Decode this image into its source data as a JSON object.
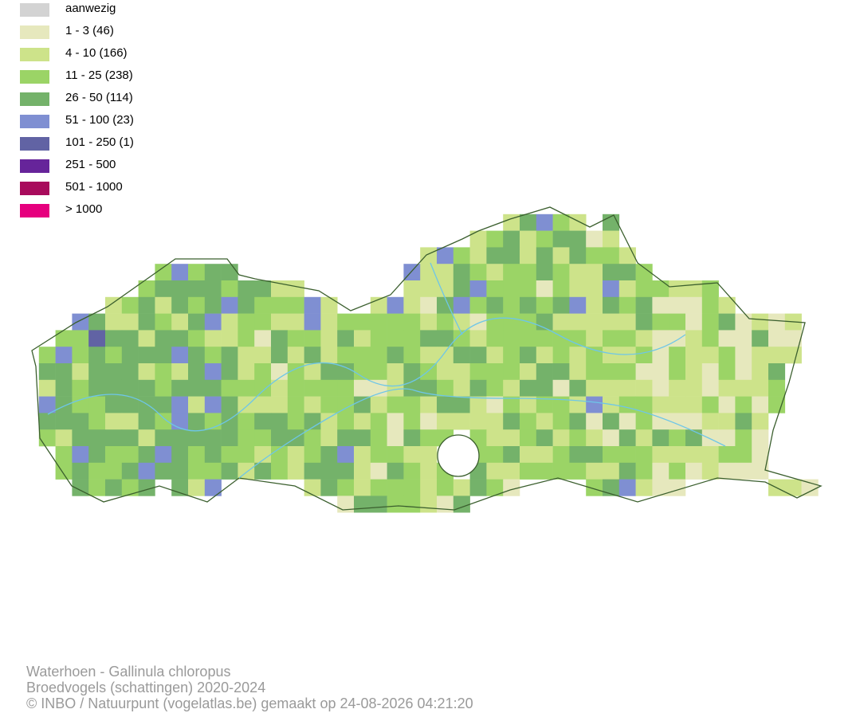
{
  "legend": [
    {
      "label": "aanwezig",
      "color": "#d3d3d3"
    },
    {
      "label": "1 - 3 (46)",
      "color": "#e6e8bd"
    },
    {
      "label": "4 - 10 (166)",
      "color": "#cde38a"
    },
    {
      "label": "11 - 25 (238)",
      "color": "#9bd466"
    },
    {
      "label": "26 - 50 (114)",
      "color": "#74b26a"
    },
    {
      "label": "51 - 100 (23)",
      "color": "#7f8fd2"
    },
    {
      "label": "101 - 250 (1)",
      "color": "#6163a4"
    },
    {
      "label": "251 - 500",
      "color": "#66249a"
    },
    {
      "label": "501 - 1000",
      "color": "#a80b5c"
    },
    {
      "label": "> 1000",
      "color": "#e6007e"
    }
  ],
  "footer": {
    "species": "Waterhoen - Gallinula chloropus",
    "dataset": "Broedvogels (schattingen) 2020-2024",
    "credit": "© INBO / Natuurpunt (vogelatlas.be) gemaakt op 24-08-2026 04:21:20"
  }
}
